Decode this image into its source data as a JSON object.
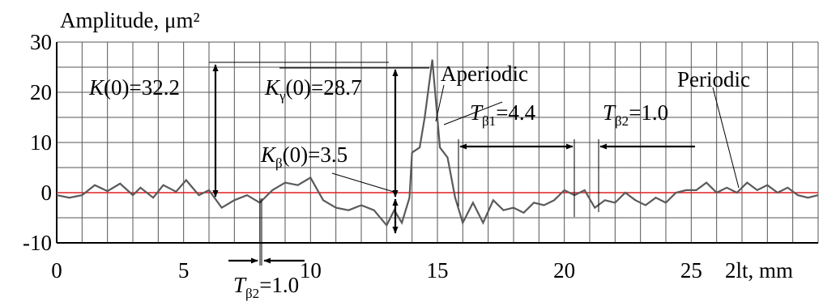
{
  "chart_data": {
    "type": "line",
    "ylabel": "Amplitude, μm²",
    "xlabel": "2lt, mm",
    "xlim": [
      0,
      30
    ],
    "ylim": [
      -10,
      30
    ],
    "x_ticks": [
      "0",
      "5",
      "10",
      "15",
      "20",
      "25"
    ],
    "y_ticks": [
      "30",
      "20",
      "10",
      "0",
      "-10"
    ],
    "grid": true,
    "zero_line_color": "#e02020",
    "curve_color": "#5a5a5a",
    "series": [
      {
        "name": "",
        "points": [
          [
            0,
            -0.5
          ],
          [
            0.5,
            -1.0
          ],
          [
            1.0,
            -0.5
          ],
          [
            1.5,
            1.5
          ],
          [
            2.0,
            0.3
          ],
          [
            2.5,
            1.8
          ],
          [
            3.0,
            -0.5
          ],
          [
            3.3,
            1.0
          ],
          [
            3.8,
            -1.0
          ],
          [
            4.2,
            1.5
          ],
          [
            4.7,
            0.2
          ],
          [
            5.1,
            2.5
          ],
          [
            5.6,
            -0.5
          ],
          [
            6.0,
            0.5
          ],
          [
            6.5,
            -3.0
          ],
          [
            7.0,
            -1.5
          ],
          [
            7.5,
            -0.5
          ],
          [
            8.0,
            -2.0
          ],
          [
            8.5,
            0.5
          ],
          [
            9.0,
            2.0
          ],
          [
            9.5,
            1.5
          ],
          [
            10.0,
            3.0
          ],
          [
            10.5,
            -1.5
          ],
          [
            11.0,
            -3.0
          ],
          [
            11.5,
            -3.5
          ],
          [
            12.0,
            -2.5
          ],
          [
            12.5,
            -3.5
          ],
          [
            13.0,
            -6.5
          ],
          [
            13.3,
            -3.5
          ],
          [
            13.6,
            -6.0
          ],
          [
            13.9,
            -1.0
          ],
          [
            14.0,
            8.0
          ],
          [
            14.3,
            9.0
          ],
          [
            14.5,
            15.0
          ],
          [
            14.8,
            26.5
          ],
          [
            15.1,
            9.0
          ],
          [
            15.4,
            7.0
          ],
          [
            15.7,
            -1.0
          ],
          [
            16.0,
            -6.0
          ],
          [
            16.4,
            -2.0
          ],
          [
            16.8,
            -6.0
          ],
          [
            17.2,
            -1.5
          ],
          [
            17.6,
            -3.5
          ],
          [
            18.0,
            -3.0
          ],
          [
            18.4,
            -4.0
          ],
          [
            18.8,
            -2.0
          ],
          [
            19.2,
            -2.5
          ],
          [
            19.6,
            -1.5
          ],
          [
            20.0,
            0.5
          ],
          [
            20.4,
            -0.5
          ],
          [
            20.8,
            0.5
          ],
          [
            21.2,
            -3.0
          ],
          [
            21.6,
            -1.5
          ],
          [
            22.0,
            -2.0
          ],
          [
            22.4,
            0.0
          ],
          [
            22.8,
            -1.5
          ],
          [
            23.2,
            -2.5
          ],
          [
            23.6,
            -1.0
          ],
          [
            24.0,
            -2.0
          ],
          [
            24.4,
            0.0
          ],
          [
            24.8,
            0.5
          ],
          [
            25.2,
            0.5
          ],
          [
            25.6,
            2.0
          ],
          [
            26.0,
            0.0
          ],
          [
            26.4,
            1.0
          ],
          [
            26.8,
            0.0
          ],
          [
            27.2,
            2.0
          ],
          [
            27.6,
            0.5
          ],
          [
            28.0,
            1.5
          ],
          [
            28.4,
            0.0
          ],
          [
            28.8,
            1.0
          ],
          [
            29.2,
            -0.5
          ],
          [
            29.6,
            -1.0
          ],
          [
            30.0,
            -0.5
          ]
        ]
      }
    ],
    "annotations": {
      "k0": {
        "base": "K",
        "sub": "",
        "value": "(0)=32.2"
      },
      "kgamma": {
        "base": "K",
        "sub": "γ",
        "value": "(0)=28.7"
      },
      "kbeta": {
        "base": "K",
        "sub": "β",
        "value": "(0)=3.5"
      },
      "aperiodic": "Aperiodic",
      "periodic": "Periodic",
      "tb1": {
        "base": "T",
        "sub": "β1",
        "value": "=4.4"
      },
      "tb2_top": {
        "base": "T",
        "sub": "β2",
        "value": "=1.0"
      },
      "tb2_bottom": {
        "base": "T",
        "sub": "β2",
        "value": "=1.0"
      }
    }
  }
}
